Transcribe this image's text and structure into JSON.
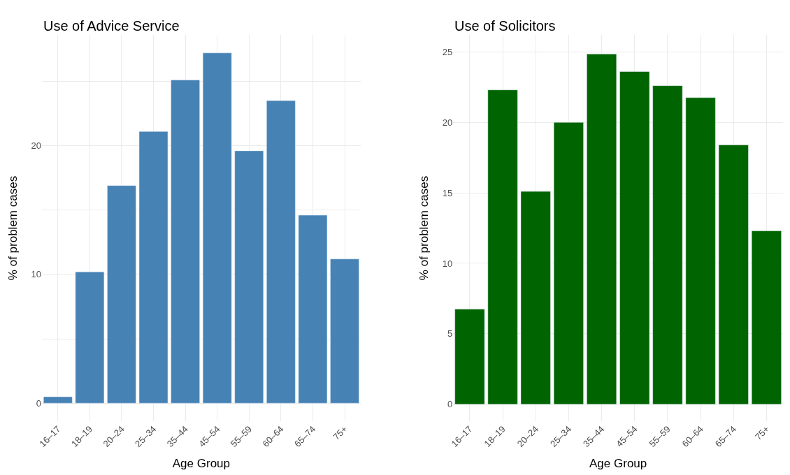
{
  "chart_data": [
    {
      "type": "bar",
      "title": "Use of Advice Service",
      "xlabel": "Age Group",
      "ylabel": "% of problem cases",
      "categories": [
        "16–17",
        "18–19",
        "20–24",
        "25–34",
        "35–44",
        "45–54",
        "55–59",
        "60–64",
        "65–74",
        "75+"
      ],
      "values": [
        0.5,
        10.2,
        16.9,
        21.1,
        25.1,
        27.2,
        19.6,
        23.5,
        14.6,
        11.2
      ],
      "color": "#4682b4",
      "ylim": [
        -1.4,
        28.6
      ],
      "yticks": [
        0,
        {
          "value": 5,
          "label": null
        },
        10,
        {
          "value": 15,
          "label": null
        },
        20,
        {
          "value": 25,
          "label": null
        }
      ],
      "grid": true
    },
    {
      "type": "bar",
      "title": "Use of Solicitors",
      "xlabel": "Age Group",
      "ylabel": "% of problem cases",
      "categories": [
        "16–17",
        "18–19",
        "20–24",
        "25–34",
        "35–44",
        "45–54",
        "55–59",
        "60–64",
        "65–74",
        "75+"
      ],
      "values": [
        6.75,
        22.3,
        15.1,
        20.0,
        24.85,
        23.6,
        22.6,
        21.75,
        18.4,
        12.3
      ],
      "color": "#006400",
      "ylim": [
        -1.2,
        26.2
      ],
      "yticks": [
        0,
        5,
        10,
        15,
        20,
        25
      ],
      "grid": true
    }
  ]
}
